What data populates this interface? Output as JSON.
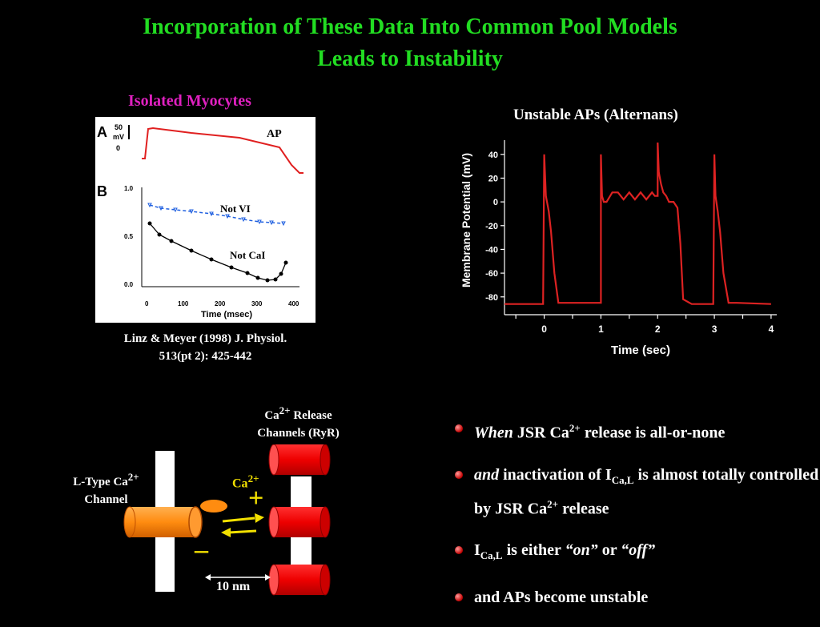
{
  "title": {
    "line1": "Incorporation of These Data Into Common Pool Models",
    "line2": "Leads to Instability"
  },
  "left_figure": {
    "heading": "Isolated Myocytes",
    "panel_a_label": "A",
    "panel_b_label": "B",
    "scale_top": "50",
    "scale_unit": "mV",
    "scale_zero": "0",
    "ap_label": "AP",
    "not_vi_label": "Not VI",
    "not_cai_label": "Not CaI",
    "y_ticks": [
      "1.0",
      "0.5",
      "0.0"
    ],
    "x_ticks": [
      "0",
      "100",
      "200",
      "300",
      "400"
    ],
    "x_axis_label": "Time (msec)",
    "citation_line1": "Linz & Meyer (1998) J. Physiol.",
    "citation_line2": "513(pt 2): 425-442"
  },
  "right_chart": {
    "heading": "Unstable APs (Alternans)",
    "ylabel": "Membrane Potential (mV)",
    "xlabel": "Time (sec)",
    "y_ticks": [
      "40",
      "20",
      "0",
      "-20",
      "-40",
      "-60",
      "-80"
    ],
    "x_ticks": [
      "0",
      "1",
      "2",
      "3",
      "4"
    ],
    "line_color": "#dd2222"
  },
  "chart_data": {
    "type": "line",
    "xlabel": "Time (sec)",
    "ylabel": "Membrane Potential (mV)",
    "xlim": [
      -0.7,
      4.1
    ],
    "ylim": [
      -95,
      52
    ],
    "series": [
      {
        "x": [
          -0.7,
          -0.02,
          0.0,
          0.03,
          0.08,
          0.12,
          0.18,
          0.25,
          1.0,
          1.0,
          1.02,
          1.05,
          1.1,
          1.2,
          1.3,
          1.4,
          1.5,
          1.6,
          1.7,
          1.8,
          1.9,
          1.95,
          2.0,
          2.0,
          2.02,
          2.06,
          2.1,
          2.15,
          2.2,
          2.28,
          2.35,
          2.4,
          2.45,
          2.6,
          2.98,
          3.0,
          3.02,
          3.06,
          3.1,
          3.16,
          3.25,
          3.4,
          4.0
        ],
        "y": [
          -86,
          -86,
          40,
          5,
          -8,
          -25,
          -60,
          -85,
          -85,
          40,
          5,
          0,
          0,
          8,
          8,
          2,
          8,
          2,
          8,
          2,
          8,
          5,
          5,
          50,
          25,
          15,
          8,
          5,
          0,
          0,
          -5,
          -35,
          -82,
          -86,
          -86,
          40,
          5,
          -8,
          -25,
          -60,
          -85,
          -85,
          -86
        ]
      }
    ]
  },
  "diagram": {
    "ryr_label_line1": "Ca",
    "ryr_label_sup": "2+",
    "ryr_label_line1b": " Release",
    "ryr_label_line2": "Channels (RyR)",
    "ltype_label_line1": "L-Type Ca",
    "ltype_label_sup": "2+",
    "ltype_label_line2": "Channel",
    "ca_label": "Ca",
    "ca_sup": "2+",
    "plus": "+",
    "minus": "–",
    "distance_label": "10 nm"
  },
  "bullets": {
    "b1_italic": "When",
    "b1_text": " JSR Ca",
    "b1_sup": "2+",
    "b1_rest": " release is all-or-none",
    "b2_italic": "and",
    "b2_text": " inactivation of I",
    "b2_sub": "Ca,L",
    "b2_rest": " is almost totally controlled by JSR Ca",
    "b2_sup": "2+",
    "b2_end": " release",
    "b3_text": "I",
    "b3_sub": "Ca,L",
    "b3_mid": " is either ",
    "b3_on": "“on”",
    "b3_or": " or ",
    "b3_off": "“off”",
    "b4_text": "and APs become unstable"
  }
}
